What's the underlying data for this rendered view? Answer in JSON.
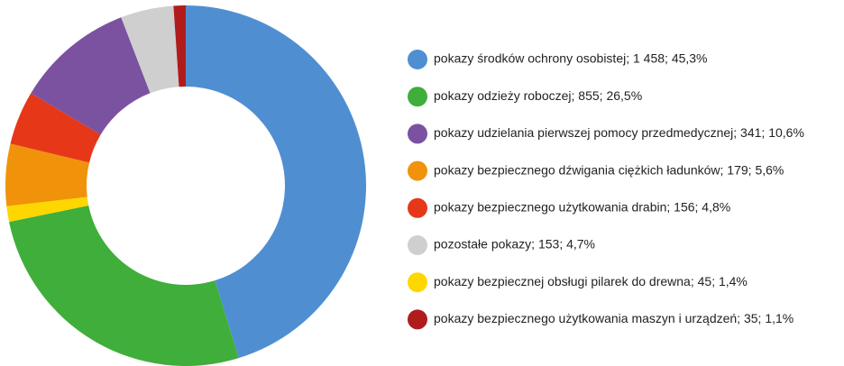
{
  "chart_data": {
    "type": "donut",
    "labels": [
      "pokazy środków ochrony osobistej; 1 458; 45,3%",
      "pokazy odzieży roboczej; 855; 26,5%",
      "pokazy udzielania pierwszej pomocy przedmedycznej; 341; 10,6%",
      "pokazy bezpiecznego dźwigania ciężkich ładunków; 179; 5,6%",
      "pokazy bezpiecznego użytkowania drabin; 156; 4,8%",
      "pozostałe pokazy; 153; 4,7%",
      "pokazy bezpiecznej obsługi pilarek do drewna; 45; 1,4%",
      "pokazy bezpiecznego użytkowania maszyn i urządzeń; 35; 1,1%"
    ],
    "values": [
      1458,
      855,
      341,
      179,
      156,
      153,
      45,
      35
    ],
    "colors": [
      "#4f8fd1",
      "#3fae3a",
      "#7b52a0",
      "#f0930a",
      "#e63719",
      "#cfcfcf",
      "#ffd700",
      "#b01c1c"
    ],
    "slice_order": [
      0,
      1,
      6,
      3,
      4,
      2,
      5,
      7
    ]
  }
}
